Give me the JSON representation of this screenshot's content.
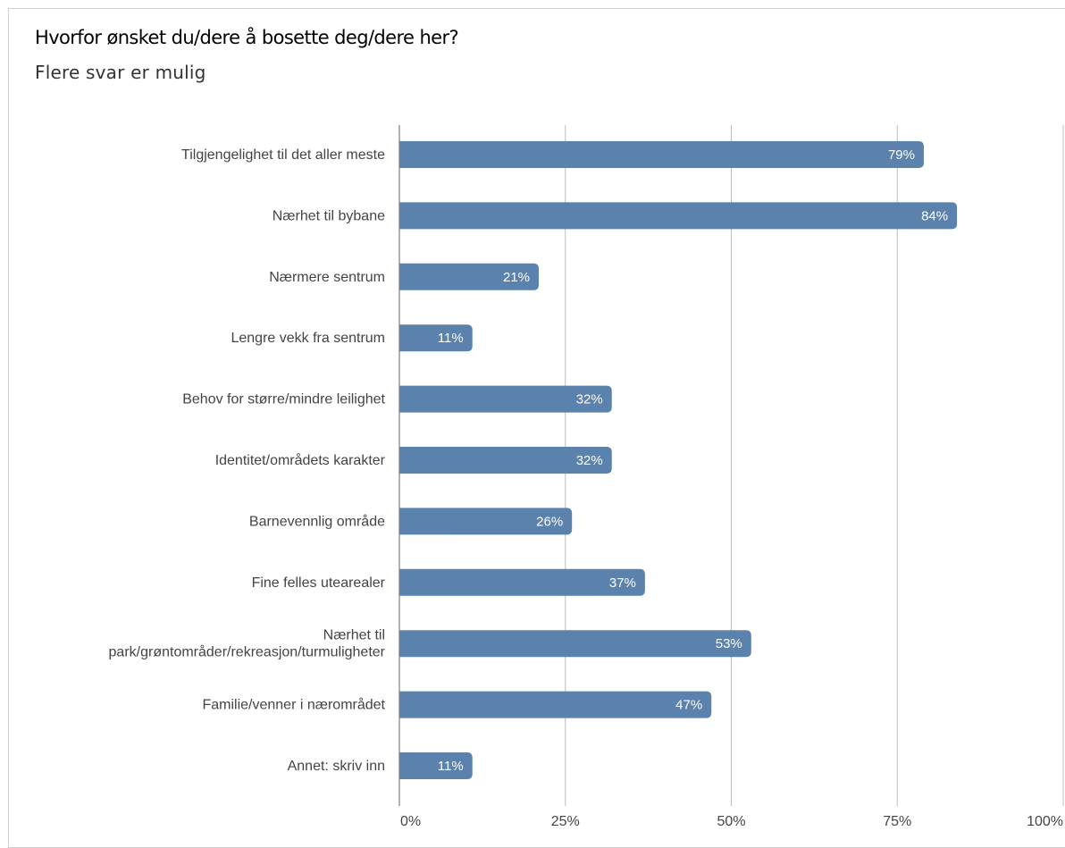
{
  "title": "Hvorfor ønsket du/dere å bosette deg/dere her?",
  "subtitle": "Flere svar er mulig",
  "colors": {
    "bar": "#5b82ad",
    "grid": "#bdbdbd",
    "axis": "#999999"
  },
  "chart_data": {
    "type": "bar",
    "orientation": "horizontal",
    "categories": [
      [
        "Tilgjengelighet til det aller meste"
      ],
      [
        "Nærhet til bybane"
      ],
      [
        "Nærmere sentrum"
      ],
      [
        "Lengre vekk fra sentrum"
      ],
      [
        "Behov for større/mindre leilighet"
      ],
      [
        "Identitet/områdets karakter"
      ],
      [
        "Barnevennlig område"
      ],
      [
        "Fine felles utearealer"
      ],
      [
        "Nærhet til",
        "park/grøntområder/rekreasjon/turmuligheter"
      ],
      [
        "Familie/venner i nærområdet"
      ],
      [
        "Annet: skriv inn"
      ]
    ],
    "values": [
      79,
      84,
      21,
      11,
      32,
      32,
      26,
      37,
      53,
      47,
      11
    ],
    "value_labels": [
      "79%",
      "84%",
      "21%",
      "11%",
      "32%",
      "32%",
      "26%",
      "37%",
      "53%",
      "47%",
      "11%"
    ],
    "xlim": [
      0,
      100
    ],
    "ticks": [
      0,
      25,
      50,
      75,
      100
    ],
    "tick_labels": [
      "0%",
      "25%",
      "50%",
      "75%",
      "100%"
    ],
    "grid": true,
    "legend": "none"
  }
}
